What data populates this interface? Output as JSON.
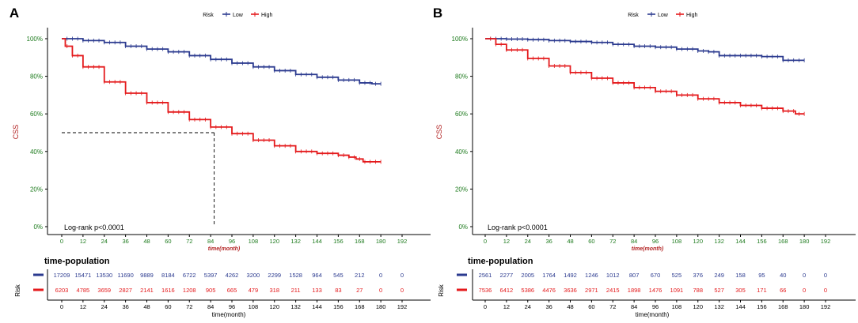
{
  "colors": {
    "low": "#2b3a8f",
    "high": "#e41a1c",
    "ylabel": "#b22222",
    "ytick": "#1e7b1e",
    "xtick": "#1e7b1e",
    "axis": "#000000"
  },
  "chart_data": [
    {
      "panel_label": "A",
      "type": "line",
      "legend_title": "Risk",
      "legend": [
        "Low",
        "High"
      ],
      "ylabel": "CSS",
      "xlabel": "time(month)",
      "xlim": [
        0,
        192
      ],
      "ylim": [
        0,
        100
      ],
      "x_ticks": [
        0,
        12,
        24,
        36,
        48,
        60,
        72,
        84,
        96,
        108,
        120,
        132,
        144,
        156,
        168,
        180,
        192
      ],
      "y_ticks": [
        "0%",
        "20%",
        "40%",
        "60%",
        "80%",
        "100%"
      ],
      "annotation": "Log-rank   p<0.0001",
      "median_line": {
        "x": 86,
        "y": 50
      },
      "series": [
        {
          "name": "Low",
          "x": [
            0,
            12,
            24,
            36,
            48,
            60,
            72,
            84,
            96,
            108,
            120,
            132,
            144,
            156,
            168,
            175,
            180
          ],
          "values": [
            100,
            99,
            98,
            96,
            94.5,
            93,
            91,
            89,
            87,
            85,
            83,
            81,
            79.5,
            78,
            76.5,
            76,
            76
          ]
        },
        {
          "name": "High",
          "x": [
            0,
            2,
            6,
            12,
            24,
            36,
            48,
            60,
            72,
            84,
            96,
            108,
            120,
            132,
            144,
            156,
            162,
            166,
            170,
            180
          ],
          "values": [
            100,
            96,
            91,
            85,
            77,
            71,
            66,
            61,
            57,
            53,
            49.5,
            46,
            43,
            40,
            39,
            38,
            37,
            36,
            34.5,
            34.5
          ]
        }
      ],
      "risk_table": {
        "title": "time-population",
        "ylabel": "Risk",
        "rows": [
          {
            "name": "Low",
            "values": [
              "17209",
              "15471",
              "13530",
              "11690",
              "9889",
              "8184",
              "6722",
              "5397",
              "4262",
              "3200",
              "2299",
              "1528",
              "964",
              "545",
              "212",
              "0",
              "0"
            ]
          },
          {
            "name": "High",
            "values": [
              "6203",
              "4785",
              "3659",
              "2827",
              "2141",
              "1616",
              "1208",
              "905",
              "665",
              "479",
              "318",
              "211",
              "133",
              "83",
              "27",
              "0",
              "0"
            ]
          }
        ],
        "x_ticks": [
          0,
          12,
          24,
          36,
          48,
          60,
          72,
          84,
          96,
          108,
          120,
          132,
          144,
          156,
          168,
          180,
          192
        ],
        "xlabel": "time(month)"
      }
    },
    {
      "panel_label": "B",
      "type": "line",
      "legend_title": "Risk",
      "legend": [
        "Low",
        "High"
      ],
      "ylabel": "CSS",
      "xlabel": "time(month)",
      "xlim": [
        0,
        192
      ],
      "ylim": [
        0,
        100
      ],
      "x_ticks": [
        0,
        12,
        24,
        36,
        48,
        60,
        72,
        84,
        96,
        108,
        120,
        132,
        144,
        156,
        168,
        180,
        192
      ],
      "y_ticks": [
        "0%",
        "20%",
        "40%",
        "60%",
        "80%",
        "100%"
      ],
      "annotation": "Log-rank   p<0.0001",
      "series": [
        {
          "name": "Low",
          "x": [
            0,
            12,
            24,
            36,
            48,
            60,
            72,
            84,
            96,
            108,
            120,
            126,
            132,
            144,
            156,
            166,
            168,
            180
          ],
          "values": [
            100,
            99.8,
            99.5,
            99,
            98.5,
            98,
            97,
            96,
            95.5,
            94.5,
            93.5,
            93,
            91,
            91,
            90.5,
            90.5,
            88.5,
            88.5
          ]
        },
        {
          "name": "High",
          "x": [
            0,
            6,
            12,
            24,
            36,
            48,
            60,
            72,
            84,
            96,
            108,
            120,
            132,
            144,
            156,
            168,
            175,
            180
          ],
          "values": [
            100,
            97,
            94,
            89.5,
            85.5,
            82,
            79,
            76.5,
            74,
            72,
            70,
            68,
            66,
            64.5,
            63,
            61.5,
            60,
            60
          ]
        }
      ],
      "risk_table": {
        "title": "time-population",
        "ylabel": "Risk",
        "rows": [
          {
            "name": "Low",
            "values": [
              "2561",
              "2277",
              "2005",
              "1764",
              "1492",
              "1246",
              "1012",
              "807",
              "670",
              "525",
              "376",
              "249",
              "158",
              "95",
              "40",
              "0",
              "0"
            ]
          },
          {
            "name": "High",
            "values": [
              "7536",
              "6412",
              "5386",
              "4476",
              "3636",
              "2971",
              "2415",
              "1898",
              "1476",
              "1091",
              "788",
              "527",
              "305",
              "171",
              "66",
              "0",
              "0"
            ]
          }
        ],
        "x_ticks": [
          0,
          12,
          24,
          36,
          48,
          60,
          72,
          84,
          96,
          108,
          120,
          132,
          144,
          156,
          168,
          180,
          192
        ],
        "xlabel": "time(month)"
      }
    }
  ]
}
